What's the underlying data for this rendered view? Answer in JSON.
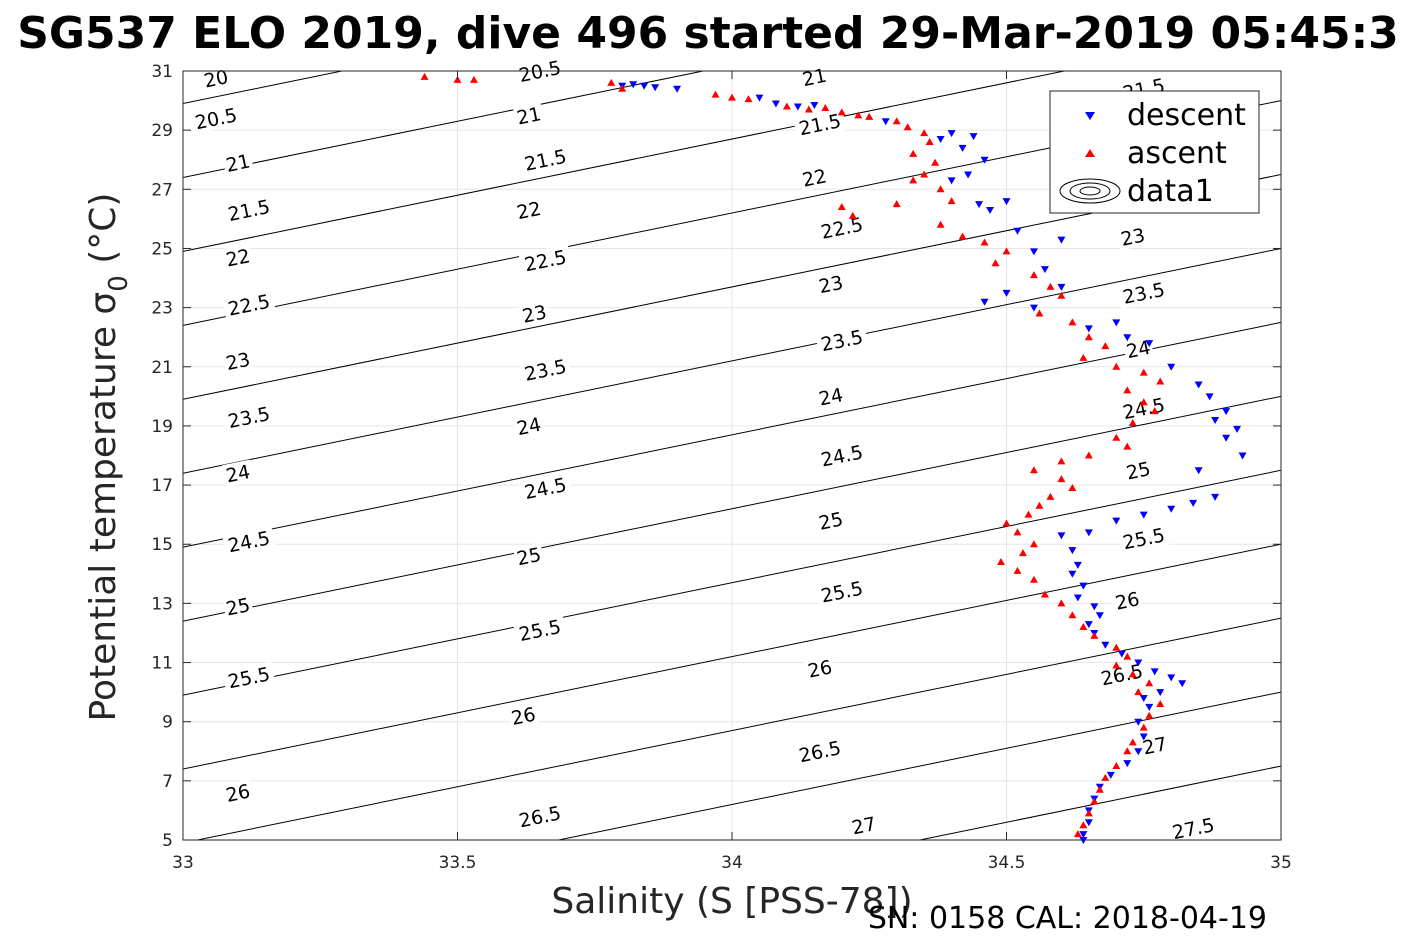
{
  "chart_data": {
    "type": "scatter",
    "title": "SG537 ELO 2019, dive 496 started 29-Mar-2019 05:45:3",
    "xlabel": "Salinity (S [PSS-78])",
    "ylabel": "Potential temperature σ",
    "ylabel_sub": "0",
    "ylabel_unit": " (°C)",
    "xlim": [
      33,
      35
    ],
    "ylim": [
      5,
      31
    ],
    "xticks": [
      33,
      33.5,
      34,
      34.5,
      35
    ],
    "xtick_labels": [
      "33",
      "33.5",
      "34",
      "34.5",
      "35"
    ],
    "yticks": [
      5,
      7,
      9,
      11,
      13,
      15,
      17,
      19,
      21,
      23,
      25,
      27,
      29,
      31
    ],
    "ytick_labels": [
      "5",
      "7",
      "9",
      "11",
      "13",
      "15",
      "17",
      "19",
      "21",
      "23",
      "25",
      "27",
      "29",
      "31"
    ],
    "grid": true,
    "legend_position": "top-right",
    "legend": [
      "descent",
      "ascent",
      "data1"
    ],
    "colors": {
      "descent": "#0000ff",
      "ascent": "#ff0000",
      "contour": "#000000",
      "grid": "#e6e6e6"
    },
    "contours": {
      "levels": [
        20,
        20.5,
        21,
        21.5,
        22,
        22.5,
        23,
        23.5,
        24,
        24.5,
        25,
        25.5,
        26,
        26.5,
        27,
        27.5
      ],
      "labels": [
        {
          "text": "20",
          "s": 33.06,
          "t": 30.75
        },
        {
          "text": "20.5",
          "s": 33.06,
          "t": 29.4
        },
        {
          "text": "21",
          "s": 33.1,
          "t": 27.9
        },
        {
          "text": "21.5",
          "s": 33.12,
          "t": 26.3
        },
        {
          "text": "22",
          "s": 33.1,
          "t": 24.7
        },
        {
          "text": "22.5",
          "s": 33.12,
          "t": 23.1
        },
        {
          "text": "23",
          "s": 33.1,
          "t": 21.2
        },
        {
          "text": "23.5",
          "s": 33.12,
          "t": 19.3
        },
        {
          "text": "24",
          "s": 33.1,
          "t": 17.4
        },
        {
          "text": "24.5",
          "s": 33.12,
          "t": 15.1
        },
        {
          "text": "25",
          "s": 33.1,
          "t": 12.9
        },
        {
          "text": "25.5",
          "s": 33.12,
          "t": 10.5
        },
        {
          "text": "26",
          "s": 33.1,
          "t": 6.6
        },
        {
          "text": "20.5",
          "s": 33.65,
          "t": 31.0
        },
        {
          "text": "21",
          "s": 33.63,
          "t": 29.5
        },
        {
          "text": "21.5",
          "s": 33.66,
          "t": 28.0
        },
        {
          "text": "22",
          "s": 33.63,
          "t": 26.3
        },
        {
          "text": "22.5",
          "s": 33.66,
          "t": 24.6
        },
        {
          "text": "23",
          "s": 33.64,
          "t": 22.8
        },
        {
          "text": "23.5",
          "s": 33.66,
          "t": 20.9
        },
        {
          "text": "24",
          "s": 33.63,
          "t": 19.0
        },
        {
          "text": "24.5",
          "s": 33.66,
          "t": 16.9
        },
        {
          "text": "25",
          "s": 33.63,
          "t": 14.6
        },
        {
          "text": "25.5",
          "s": 33.65,
          "t": 12.1
        },
        {
          "text": "26",
          "s": 33.62,
          "t": 9.2
        },
        {
          "text": "26.5",
          "s": 33.65,
          "t": 5.8
        },
        {
          "text": "21",
          "s": 34.15,
          "t": 30.8
        },
        {
          "text": "21.5",
          "s": 34.16,
          "t": 29.2
        },
        {
          "text": "22",
          "s": 34.15,
          "t": 27.4
        },
        {
          "text": "22.5",
          "s": 34.2,
          "t": 25.7
        },
        {
          "text": "23",
          "s": 34.18,
          "t": 23.8
        },
        {
          "text": "23.5",
          "s": 34.2,
          "t": 21.9
        },
        {
          "text": "24",
          "s": 34.18,
          "t": 20.0
        },
        {
          "text": "24.5",
          "s": 34.2,
          "t": 18.0
        },
        {
          "text": "25",
          "s": 34.18,
          "t": 15.8
        },
        {
          "text": "25.5",
          "s": 34.2,
          "t": 13.4
        },
        {
          "text": "26",
          "s": 34.16,
          "t": 10.8
        },
        {
          "text": "26.5",
          "s": 34.16,
          "t": 8.0
        },
        {
          "text": "27",
          "s": 34.24,
          "t": 5.5
        },
        {
          "text": "21.5",
          "s": 34.75,
          "t": 30.4
        },
        {
          "text": "23",
          "s": 34.73,
          "t": 25.4
        },
        {
          "text": "23.5",
          "s": 34.75,
          "t": 23.5
        },
        {
          "text": "24",
          "s": 34.74,
          "t": 21.6
        },
        {
          "text": "24.5",
          "s": 34.75,
          "t": 19.6
        },
        {
          "text": "25",
          "s": 34.74,
          "t": 17.5
        },
        {
          "text": "25.5",
          "s": 34.75,
          "t": 15.2
        },
        {
          "text": "26",
          "s": 34.72,
          "t": 13.1
        },
        {
          "text": "26.5",
          "s": 34.71,
          "t": 10.6
        },
        {
          "text": "27",
          "s": 34.77,
          "t": 8.2
        },
        {
          "text": "27.5",
          "s": 34.84,
          "t": 5.4
        }
      ]
    },
    "series": [
      {
        "name": "descent",
        "marker": "triangle-down",
        "points": [
          [
            33.8,
            30.5
          ],
          [
            33.82,
            30.55
          ],
          [
            33.84,
            30.5
          ],
          [
            33.86,
            30.45
          ],
          [
            33.9,
            30.4
          ],
          [
            34.05,
            30.1
          ],
          [
            34.08,
            29.9
          ],
          [
            34.12,
            29.8
          ],
          [
            34.15,
            29.85
          ],
          [
            34.28,
            29.3
          ],
          [
            34.38,
            28.7
          ],
          [
            34.4,
            28.9
          ],
          [
            34.42,
            28.4
          ],
          [
            34.44,
            28.8
          ],
          [
            34.46,
            28.0
          ],
          [
            34.43,
            27.5
          ],
          [
            34.4,
            27.3
          ],
          [
            34.45,
            26.5
          ],
          [
            34.47,
            26.3
          ],
          [
            34.5,
            26.6
          ],
          [
            34.52,
            25.6
          ],
          [
            34.6,
            25.3
          ],
          [
            34.55,
            24.9
          ],
          [
            34.57,
            24.3
          ],
          [
            34.5,
            23.5
          ],
          [
            34.46,
            23.2
          ],
          [
            34.55,
            23.0
          ],
          [
            34.6,
            23.7
          ],
          [
            34.65,
            22.3
          ],
          [
            34.7,
            22.5
          ],
          [
            34.72,
            22.0
          ],
          [
            34.76,
            21.8
          ],
          [
            34.8,
            21.0
          ],
          [
            34.85,
            20.4
          ],
          [
            34.87,
            20.0
          ],
          [
            34.9,
            19.5
          ],
          [
            34.88,
            19.2
          ],
          [
            34.92,
            18.9
          ],
          [
            34.9,
            18.6
          ],
          [
            34.93,
            18.0
          ],
          [
            34.85,
            17.5
          ],
          [
            34.88,
            16.6
          ],
          [
            34.84,
            16.4
          ],
          [
            34.8,
            16.2
          ],
          [
            34.75,
            16.0
          ],
          [
            34.7,
            15.8
          ],
          [
            34.65,
            15.4
          ],
          [
            34.6,
            15.3
          ],
          [
            34.62,
            14.8
          ],
          [
            34.63,
            14.3
          ],
          [
            34.62,
            14.0
          ],
          [
            34.64,
            13.6
          ],
          [
            34.63,
            13.2
          ],
          [
            34.66,
            12.9
          ],
          [
            34.67,
            12.6
          ],
          [
            34.65,
            12.3
          ],
          [
            34.66,
            12.0
          ],
          [
            34.68,
            11.6
          ],
          [
            34.71,
            11.3
          ],
          [
            34.74,
            11.0
          ],
          [
            34.77,
            10.7
          ],
          [
            34.8,
            10.5
          ],
          [
            34.82,
            10.3
          ],
          [
            34.78,
            10.0
          ],
          [
            34.75,
            9.8
          ],
          [
            34.76,
            9.5
          ],
          [
            34.74,
            9.0
          ],
          [
            34.75,
            8.5
          ],
          [
            34.74,
            8.0
          ],
          [
            34.72,
            7.6
          ],
          [
            34.69,
            7.2
          ],
          [
            34.67,
            6.8
          ],
          [
            34.66,
            6.4
          ],
          [
            34.65,
            6.0
          ],
          [
            34.65,
            5.6
          ],
          [
            34.64,
            5.2
          ],
          [
            34.64,
            5.0
          ]
        ]
      },
      {
        "name": "ascent",
        "marker": "triangle-up",
        "points": [
          [
            33.44,
            30.8
          ],
          [
            33.5,
            30.7
          ],
          [
            33.53,
            30.7
          ],
          [
            33.78,
            30.6
          ],
          [
            33.8,
            30.4
          ],
          [
            33.97,
            30.2
          ],
          [
            34.0,
            30.1
          ],
          [
            34.03,
            30.05
          ],
          [
            34.1,
            29.8
          ],
          [
            34.14,
            29.7
          ],
          [
            34.17,
            29.75
          ],
          [
            34.2,
            29.6
          ],
          [
            34.23,
            29.5
          ],
          [
            34.25,
            29.45
          ],
          [
            34.3,
            29.3
          ],
          [
            34.32,
            29.1
          ],
          [
            34.35,
            28.9
          ],
          [
            34.36,
            28.6
          ],
          [
            34.33,
            28.2
          ],
          [
            34.37,
            27.9
          ],
          [
            34.35,
            27.5
          ],
          [
            34.33,
            27.3
          ],
          [
            34.38,
            27.0
          ],
          [
            34.4,
            26.6
          ],
          [
            34.3,
            26.5
          ],
          [
            34.2,
            26.4
          ],
          [
            34.22,
            26.1
          ],
          [
            34.38,
            25.8
          ],
          [
            34.42,
            25.4
          ],
          [
            34.46,
            25.2
          ],
          [
            34.5,
            24.9
          ],
          [
            34.48,
            24.5
          ],
          [
            34.55,
            24.1
          ],
          [
            34.58,
            23.7
          ],
          [
            34.6,
            23.4
          ],
          [
            34.56,
            22.8
          ],
          [
            34.62,
            22.5
          ],
          [
            34.65,
            22.0
          ],
          [
            34.68,
            21.7
          ],
          [
            34.64,
            21.3
          ],
          [
            34.7,
            21.0
          ],
          [
            34.75,
            20.8
          ],
          [
            34.78,
            20.5
          ],
          [
            34.72,
            20.2
          ],
          [
            34.75,
            19.8
          ],
          [
            34.77,
            19.5
          ],
          [
            34.73,
            19.1
          ],
          [
            34.7,
            18.6
          ],
          [
            34.72,
            18.3
          ],
          [
            34.65,
            18.0
          ],
          [
            34.6,
            17.8
          ],
          [
            34.55,
            17.5
          ],
          [
            34.6,
            17.2
          ],
          [
            34.62,
            16.9
          ],
          [
            34.58,
            16.6
          ],
          [
            34.56,
            16.3
          ],
          [
            34.54,
            16.0
          ],
          [
            34.5,
            15.7
          ],
          [
            34.52,
            15.4
          ],
          [
            34.55,
            15.0
          ],
          [
            34.53,
            14.7
          ],
          [
            34.49,
            14.4
          ],
          [
            34.52,
            14.1
          ],
          [
            34.55,
            13.8
          ],
          [
            34.57,
            13.3
          ],
          [
            34.6,
            13.0
          ],
          [
            34.62,
            12.6
          ],
          [
            34.64,
            12.2
          ],
          [
            34.66,
            11.9
          ],
          [
            34.7,
            11.5
          ],
          [
            34.72,
            11.2
          ],
          [
            34.7,
            10.9
          ],
          [
            34.73,
            10.6
          ],
          [
            34.76,
            10.3
          ],
          [
            34.74,
            10.0
          ],
          [
            34.78,
            9.6
          ],
          [
            34.76,
            9.2
          ],
          [
            34.75,
            8.8
          ],
          [
            34.73,
            8.3
          ],
          [
            34.72,
            8.0
          ],
          [
            34.7,
            7.5
          ],
          [
            34.68,
            7.1
          ],
          [
            34.67,
            6.7
          ],
          [
            34.66,
            6.3
          ],
          [
            34.65,
            5.9
          ],
          [
            34.64,
            5.5
          ],
          [
            34.63,
            5.2
          ]
        ]
      }
    ]
  },
  "footer": "SN: 0158  CAL: 2018-04-19"
}
